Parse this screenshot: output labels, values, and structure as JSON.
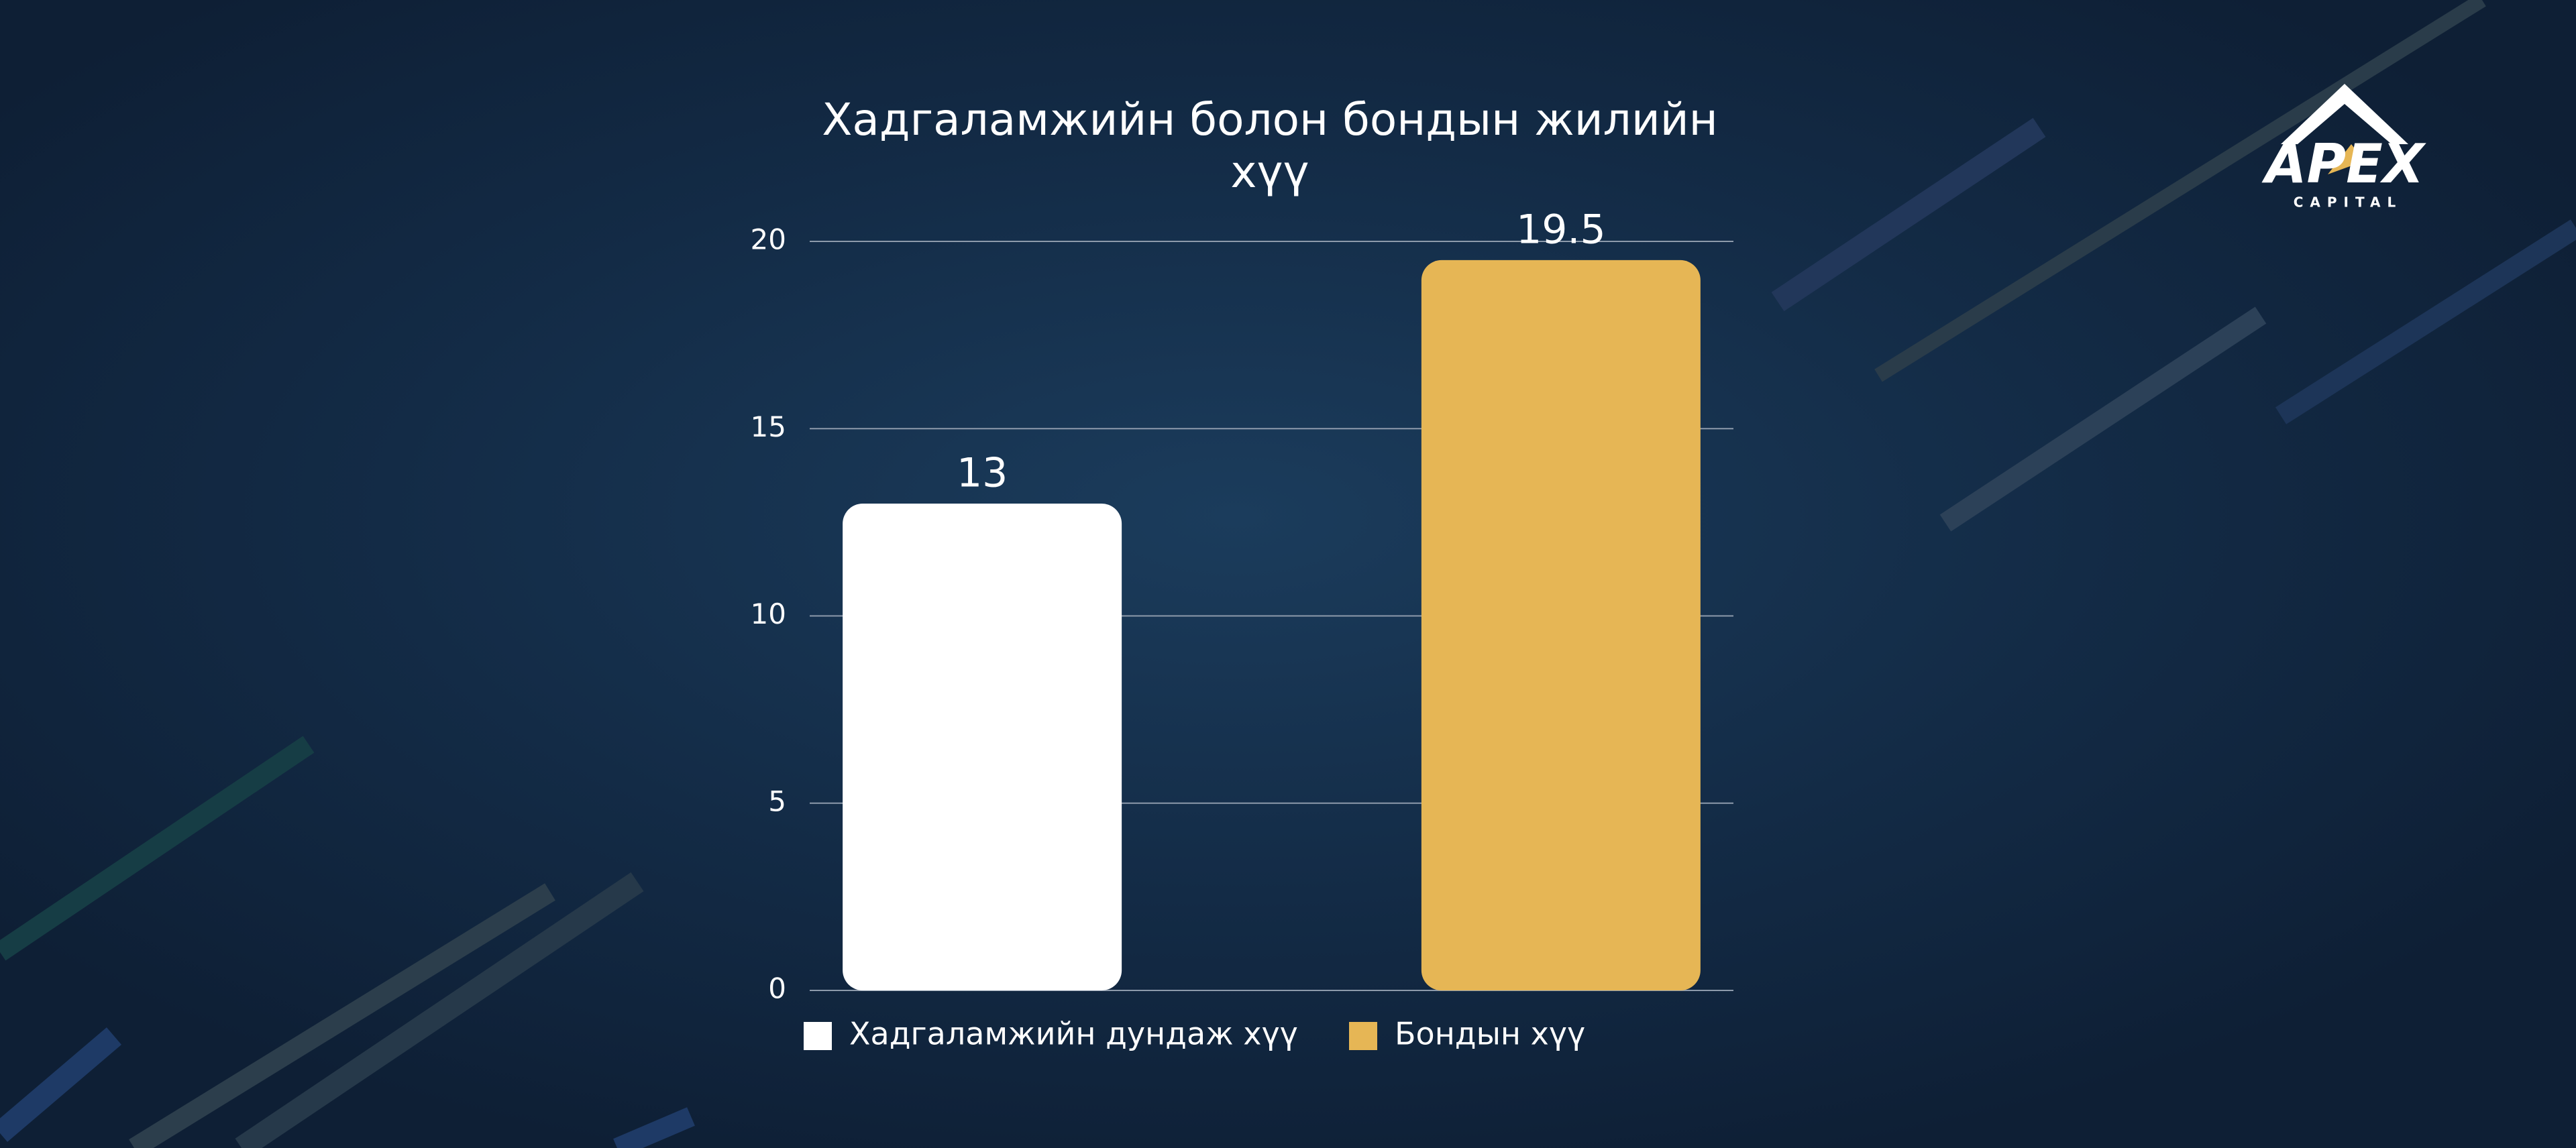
{
  "chart_data": {
    "type": "bar",
    "title": "Хадгаламжийн болон бондын жилийн хүү",
    "categories": [
      null
    ],
    "series": [
      {
        "name": "Хадгаламжийн дундаж хүү",
        "color": "#ffffff",
        "values": [
          13
        ]
      },
      {
        "name": "Бондын хүү",
        "color": "#e6b655",
        "values": [
          19.5
        ]
      }
    ],
    "ylim": [
      0,
      20
    ],
    "yticks": [
      0,
      5,
      10,
      15,
      20
    ],
    "grid": true,
    "legend": "bottom"
  },
  "logo": {
    "name": "APEX",
    "subtitle": "CAPITAL"
  }
}
